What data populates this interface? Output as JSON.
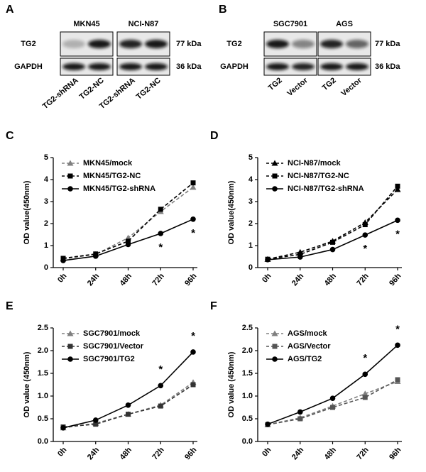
{
  "blots": [
    {
      "panel": "A",
      "columns": [
        "MKN45",
        "NCI-N87"
      ],
      "rows": [
        "TG2",
        "GAPDH"
      ],
      "sizes": [
        "77 kDa",
        "36 kDa"
      ],
      "lanes": [
        "TG2-shRNA",
        "TG2-NC",
        "TG2-shRNA",
        "TG2-NC"
      ]
    },
    {
      "panel": "B",
      "columns": [
        "SGC7901",
        "AGS"
      ],
      "rows": [
        "TG2",
        "GAPDH"
      ],
      "sizes": [
        "77 kDa",
        "36 kDa"
      ],
      "lanes": [
        "TG2",
        "Vector",
        "TG2",
        "Vector"
      ]
    }
  ],
  "chart_data": [
    {
      "type": "line",
      "panel": "C",
      "y_label": "OD value(450nm)",
      "categories": [
        "0h",
        "24h",
        "48h",
        "72h",
        "96h"
      ],
      "ylim": [
        0,
        5
      ],
      "yticks": [
        0,
        1,
        2,
        3,
        4,
        5
      ],
      "series": [
        {
          "name": "MKN45/mock",
          "color": "#808080",
          "marker": "triangle",
          "dashed": true,
          "values": [
            0.4,
            0.6,
            1.35,
            2.55,
            3.65
          ]
        },
        {
          "name": "MKN45/TG2-NC",
          "color": "#000000",
          "marker": "square",
          "dashed": true,
          "values": [
            0.42,
            0.62,
            1.2,
            2.65,
            3.85
          ]
        },
        {
          "name": "MKN45/TG2-shRNA",
          "color": "#000000",
          "marker": "circle",
          "dashed": false,
          "values": [
            0.32,
            0.52,
            1.05,
            1.55,
            2.2
          ]
        }
      ],
      "annotations": [
        {
          "text": "*",
          "x": "72h"
        },
        {
          "text": "*",
          "x": "96h"
        }
      ]
    },
    {
      "type": "line",
      "panel": "D",
      "y_label": "OD value(450nm)",
      "categories": [
        "0h",
        "24h",
        "48h",
        "72h",
        "96h"
      ],
      "ylim": [
        0,
        5
      ],
      "yticks": [
        0,
        1,
        2,
        3,
        4,
        5
      ],
      "series": [
        {
          "name": "NCI-N87/mock",
          "color": "#000000",
          "marker": "triangle",
          "dashed": true,
          "values": [
            0.38,
            0.7,
            1.2,
            2.05,
            3.55
          ]
        },
        {
          "name": "NCI-N87/TG2-NC",
          "color": "#000000",
          "marker": "square",
          "dashed": true,
          "values": [
            0.38,
            0.6,
            1.15,
            1.95,
            3.7
          ]
        },
        {
          "name": "NCI-N87/TG2-shRNA",
          "color": "#000000",
          "marker": "circle",
          "dashed": false,
          "values": [
            0.36,
            0.48,
            0.82,
            1.48,
            2.15
          ]
        }
      ],
      "annotations": [
        {
          "text": "*",
          "x": "72h"
        },
        {
          "text": "*",
          "x": "96h"
        }
      ]
    },
    {
      "type": "line",
      "panel": "E",
      "y_label": "OD value (450nm)",
      "categories": [
        "0h",
        "24h",
        "48h",
        "72h",
        "96h"
      ],
      "ylim": [
        0,
        2.5
      ],
      "yticks": [
        {
          "value": 0,
          "label": "0.0"
        },
        0.5,
        {
          "value": 1,
          "label": "1.0"
        },
        1.5,
        {
          "value": 2,
          "label": "2.0"
        },
        2.5
      ],
      "series": [
        {
          "name": "SGC7901/mock",
          "color": "#808080",
          "marker": "triangle",
          "dashed": true,
          "values": [
            0.3,
            0.4,
            0.6,
            0.8,
            1.3
          ]
        },
        {
          "name": "SGC7901/Vector",
          "color": "#333333",
          "marker": "square",
          "dashed": true,
          "values": [
            0.32,
            0.38,
            0.6,
            0.78,
            1.25
          ]
        },
        {
          "name": "SGC7901/TG2",
          "color": "#000000",
          "marker": "circle",
          "dashed": false,
          "values": [
            0.3,
            0.47,
            0.8,
            1.23,
            1.97
          ]
        }
      ],
      "annotations": [
        {
          "text": "*",
          "x": "72h"
        },
        {
          "text": "*",
          "x": "96h"
        }
      ]
    },
    {
      "type": "line",
      "panel": "F",
      "y_label": "OD value (450nm)",
      "categories": [
        "0h",
        "24h",
        "48h",
        "72h",
        "96h"
      ],
      "ylim": [
        0,
        2.5
      ],
      "yticks": [
        {
          "value": 0,
          "label": "0.0"
        },
        0.5,
        {
          "value": 1,
          "label": "1.0"
        },
        1.5,
        {
          "value": 2,
          "label": "2.0"
        },
        2.5
      ],
      "series": [
        {
          "name": "AGS/mock",
          "color": "#808080",
          "marker": "triangle",
          "dashed": true,
          "values": [
            0.37,
            0.52,
            0.78,
            1.05,
            1.32
          ]
        },
        {
          "name": "AGS/Vector",
          "color": "#555555",
          "marker": "square",
          "dashed": true,
          "values": [
            0.37,
            0.5,
            0.75,
            0.97,
            1.36
          ]
        },
        {
          "name": "AGS/TG2",
          "color": "#000000",
          "marker": "circle",
          "dashed": false,
          "values": [
            0.38,
            0.65,
            0.95,
            1.48,
            2.12
          ]
        }
      ],
      "annotations": [
        {
          "text": "*",
          "x": "72h"
        },
        {
          "text": "*",
          "x": "96h"
        }
      ]
    }
  ]
}
